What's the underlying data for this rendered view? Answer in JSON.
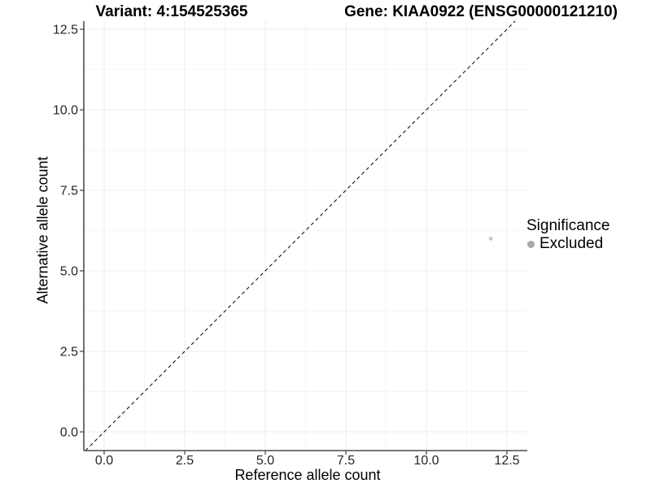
{
  "chart_data": {
    "type": "scatter",
    "title_left": "Variant: 4:154525365",
    "title_right": "Gene: KIAA0922 (ENSG00000121210)",
    "xlabel": "Reference allele count",
    "ylabel": "Alternative allele count",
    "xlim": [
      -0.63,
      13.13
    ],
    "ylim": [
      -0.58,
      12.75
    ],
    "x_ticks": [
      0,
      2.5,
      5,
      7.5,
      10,
      12.5
    ],
    "x_tick_labels": [
      "0.0",
      "2.5",
      "5.0",
      "7.5",
      "10.0",
      "12.5"
    ],
    "y_ticks": [
      0,
      2.5,
      5,
      7.5,
      10,
      12.5
    ],
    "y_tick_labels": [
      "0.0",
      "2.5",
      "5.0",
      "7.5",
      "10.0",
      "12.5"
    ],
    "grid": {
      "major": true,
      "minor": true
    },
    "identity_line": {
      "slope": 1,
      "intercept": 0,
      "style": "dashed",
      "color": "#000000"
    },
    "series": [
      {
        "name": "Excluded",
        "marker": "circle",
        "color": "#C6C6C6",
        "radius": 2.4,
        "points": [
          {
            "x": 12,
            "y": 6
          }
        ]
      }
    ],
    "legend": {
      "title": "Significance",
      "position": "right",
      "items": [
        {
          "label": "Excluded",
          "color": "#A8A8A8"
        }
      ]
    },
    "style": {
      "background": "#FFFFFF",
      "axis_color": "#4D4D4D",
      "grid_major": "#ECECEC",
      "grid_minor": "#F6F6F6",
      "tick_label_color": "#262626",
      "tick_label_size": 16
    }
  }
}
